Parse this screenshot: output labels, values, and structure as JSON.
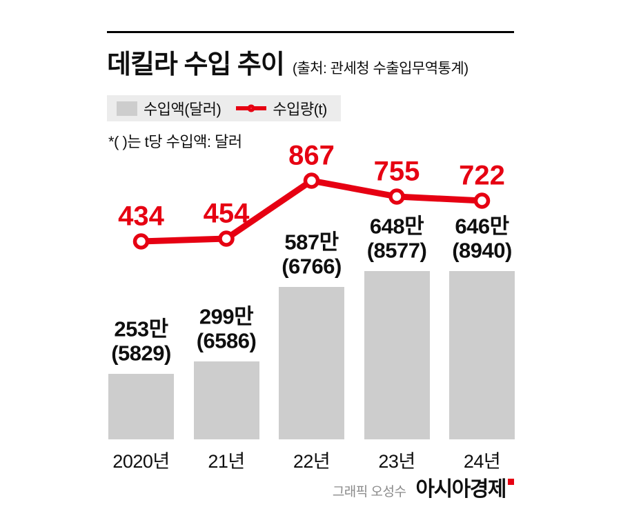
{
  "chart_data": {
    "type": "bar+line combo",
    "title": "데킬라 수입 추이",
    "source": "(출처: 관세청 수출입무역통계)",
    "note": "*( )는 t당 수입액: 달러",
    "categories": [
      "2020년",
      "21년",
      "22년",
      "23년",
      "24년"
    ],
    "series": [
      {
        "name": "수입액(달러)",
        "type": "bar",
        "unit": "만 달러",
        "values": [
          253,
          299,
          587,
          648,
          646
        ],
        "value_labels": [
          "253만",
          "299만",
          "587만",
          "648만",
          "646만"
        ],
        "per_ton_labels": [
          "(5829)",
          "(6586)",
          "(6766)",
          "(8577)",
          "(8940)"
        ]
      },
      {
        "name": "수입량(t)",
        "type": "line",
        "unit": "t",
        "values": [
          434,
          454,
          867,
          755,
          722
        ]
      }
    ],
    "legend": [
      "수입액(달러)",
      "수입량(t)"
    ],
    "legend_position": "top-left",
    "grid": false,
    "axes_hidden": true
  },
  "footer": {
    "credit": "그래픽 오성수",
    "brand": "아시아경제"
  },
  "colors": {
    "red": "#e60012",
    "bar_gray": "#cdcdcd",
    "legend_bg": "#ececec",
    "text": "#0f0f0f",
    "credit_gray": "#8a8a8a"
  }
}
